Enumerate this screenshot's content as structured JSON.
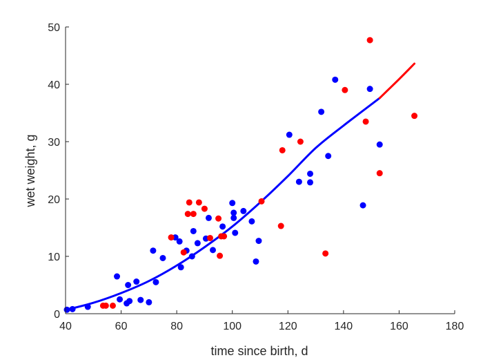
{
  "chart_data": {
    "type": "scatter",
    "xlabel": "time since birth, d",
    "ylabel": "wet weight, g",
    "xlim": [
      40,
      180
    ],
    "ylim": [
      0,
      50
    ],
    "xticks": [
      40,
      60,
      80,
      100,
      120,
      140,
      160,
      180
    ],
    "yticks": [
      0,
      10,
      20,
      30,
      40,
      50
    ],
    "grid": false,
    "colors": {
      "blue": "#0000ff",
      "red": "#ff0000",
      "axis": "#262626"
    },
    "series": [
      {
        "color": "#0000ff",
        "points": [
          [
            40.5,
            0.7
          ],
          [
            42.5,
            0.8
          ],
          [
            48,
            1.2
          ],
          [
            58.5,
            6.5
          ],
          [
            59.5,
            2.5
          ],
          [
            62,
            1.8
          ],
          [
            62.5,
            5
          ],
          [
            63,
            2.2
          ],
          [
            65.5,
            5.6
          ],
          [
            67,
            2.4
          ],
          [
            70,
            2.0
          ],
          [
            71.5,
            11
          ],
          [
            72.5,
            5.5
          ],
          [
            75,
            9.7
          ],
          [
            79.5,
            13.3
          ],
          [
            81,
            12.6
          ],
          [
            81.5,
            8.1
          ],
          [
            83.5,
            11
          ],
          [
            85.5,
            10
          ],
          [
            86,
            14.4
          ],
          [
            87.5,
            12.3
          ],
          [
            90.5,
            13.1
          ],
          [
            91.5,
            16.7
          ],
          [
            93,
            11.1
          ],
          [
            96.5,
            15.2
          ],
          [
            100,
            19.3
          ],
          [
            100.5,
            17.6
          ],
          [
            100.5,
            16.7
          ],
          [
            101,
            14.1
          ],
          [
            104,
            17.9
          ],
          [
            107,
            16.1
          ],
          [
            108.5,
            9.1
          ],
          [
            109.5,
            12.7
          ],
          [
            120.5,
            31.2
          ],
          [
            124,
            23
          ],
          [
            128,
            22.9
          ],
          [
            128,
            24.4
          ],
          [
            132,
            35.2
          ],
          [
            134.5,
            27.5
          ],
          [
            137,
            40.8
          ],
          [
            147,
            18.9
          ],
          [
            149.5,
            39.2
          ],
          [
            153,
            29.5
          ]
        ]
      },
      {
        "color": "#ff0000",
        "points": [
          [
            53.5,
            1.4
          ],
          [
            54.5,
            1.4
          ],
          [
            57,
            1.4
          ],
          [
            78,
            13.3
          ],
          [
            82.5,
            10.7
          ],
          [
            84,
            17.4
          ],
          [
            84.5,
            19.4
          ],
          [
            86,
            17.4
          ],
          [
            88,
            19.4
          ],
          [
            90,
            18.3
          ],
          [
            92,
            13.2
          ],
          [
            95,
            16.6
          ],
          [
            95.5,
            10.1
          ],
          [
            96,
            13.5
          ],
          [
            97,
            13.5
          ],
          [
            110.5,
            19.6
          ],
          [
            117.5,
            15.3
          ],
          [
            118,
            28.5
          ],
          [
            124.5,
            30
          ],
          [
            133.5,
            10.5
          ],
          [
            140.5,
            39
          ],
          [
            148,
            33.5
          ],
          [
            149.5,
            47.7
          ],
          [
            153,
            24.5
          ],
          [
            165.5,
            34.5
          ]
        ]
      }
    ],
    "fit_curve": {
      "blue_segment": [
        [
          40,
          0.65
        ],
        [
          50,
          1.9
        ],
        [
          60,
          3.6
        ],
        [
          70,
          5.7
        ],
        [
          80,
          8.4
        ],
        [
          90,
          11.6
        ],
        [
          100,
          15.2
        ],
        [
          110,
          19.4
        ],
        [
          120,
          24.0
        ],
        [
          130,
          28.9
        ],
        [
          140,
          32.8
        ],
        [
          153,
          37.6
        ]
      ],
      "red_segment": [
        [
          153,
          37.6
        ],
        [
          160,
          40.9
        ],
        [
          165.5,
          43.6
        ]
      ]
    }
  }
}
